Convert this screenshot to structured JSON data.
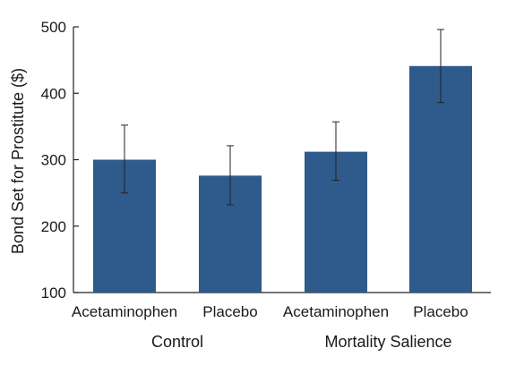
{
  "chart_data": {
    "type": "bar",
    "ylabel": "Bond Set for Prostitute ($)",
    "ylim": [
      100,
      500
    ],
    "yticks": [
      100,
      200,
      300,
      400,
      500
    ],
    "grid": false,
    "bar_color": "#2e5a8c",
    "error_bar_color": "#222222",
    "groups": [
      {
        "label": "Control",
        "bars": [
          {
            "category": "Acetaminophen",
            "value": 300,
            "err_low": 250,
            "err_high": 352
          },
          {
            "category": "Placebo",
            "value": 276,
            "err_low": 232,
            "err_high": 321
          }
        ]
      },
      {
        "label": "Mortality Salience",
        "bars": [
          {
            "category": "Acetaminophen",
            "value": 312,
            "err_low": 269,
            "err_high": 357
          },
          {
            "category": "Placebo",
            "value": 441,
            "err_low": 386,
            "err_high": 496
          }
        ]
      }
    ]
  }
}
